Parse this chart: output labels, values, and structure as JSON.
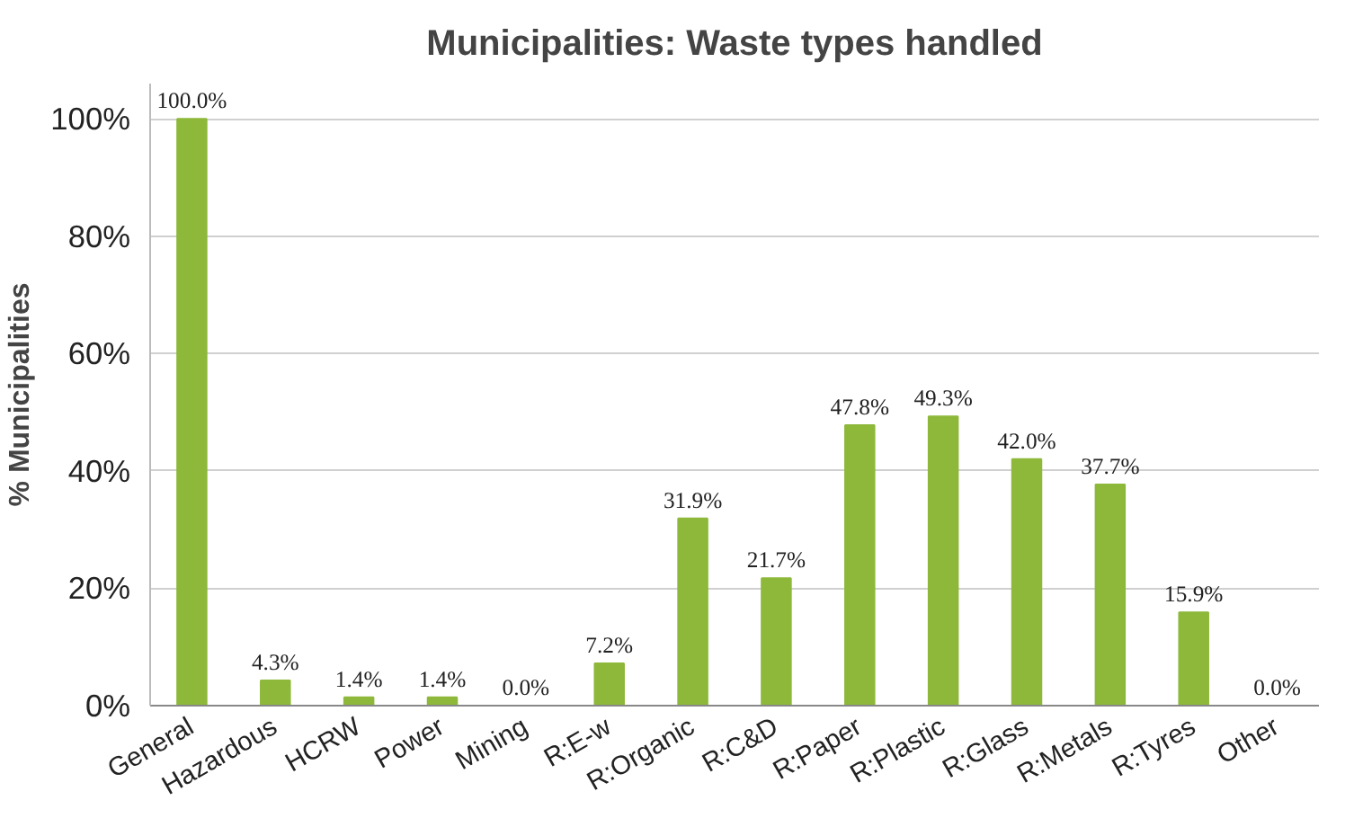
{
  "chart_data": {
    "type": "bar",
    "title": "Municipalities: Waste types handled",
    "ylabel": "% Municipalities",
    "categories": [
      "General",
      "Hazardous",
      "HCRW",
      "Power",
      "Mining",
      "R:E-w",
      "R:Organic",
      "R:C&D",
      "R:Paper",
      "R:Plastic",
      "R:Glass",
      "R:Metals",
      "R:Tyres",
      "Other"
    ],
    "values": [
      100.0,
      4.3,
      1.4,
      1.4,
      0.0,
      7.2,
      31.9,
      21.7,
      47.8,
      49.3,
      42.0,
      37.7,
      15.9,
      0.0
    ],
    "value_labels": [
      "100.0%",
      "4.3%",
      "1.4%",
      "1.4%",
      "0.0%",
      "7.2%",
      "31.9%",
      "21.7%",
      "47.8%",
      "49.3%",
      "42.0%",
      "37.7%",
      "15.9%",
      "0.0%"
    ],
    "color": "#8db83a",
    "ylim": [
      0,
      106
    ],
    "yticks": [
      {
        "value": 0,
        "label": "0%"
      },
      {
        "value": 20,
        "label": "20%"
      },
      {
        "value": 40,
        "label": "40%"
      },
      {
        "value": 60,
        "label": "60%"
      },
      {
        "value": 80,
        "label": "80%"
      },
      {
        "value": 100,
        "label": "100%"
      }
    ],
    "grid": "y"
  }
}
